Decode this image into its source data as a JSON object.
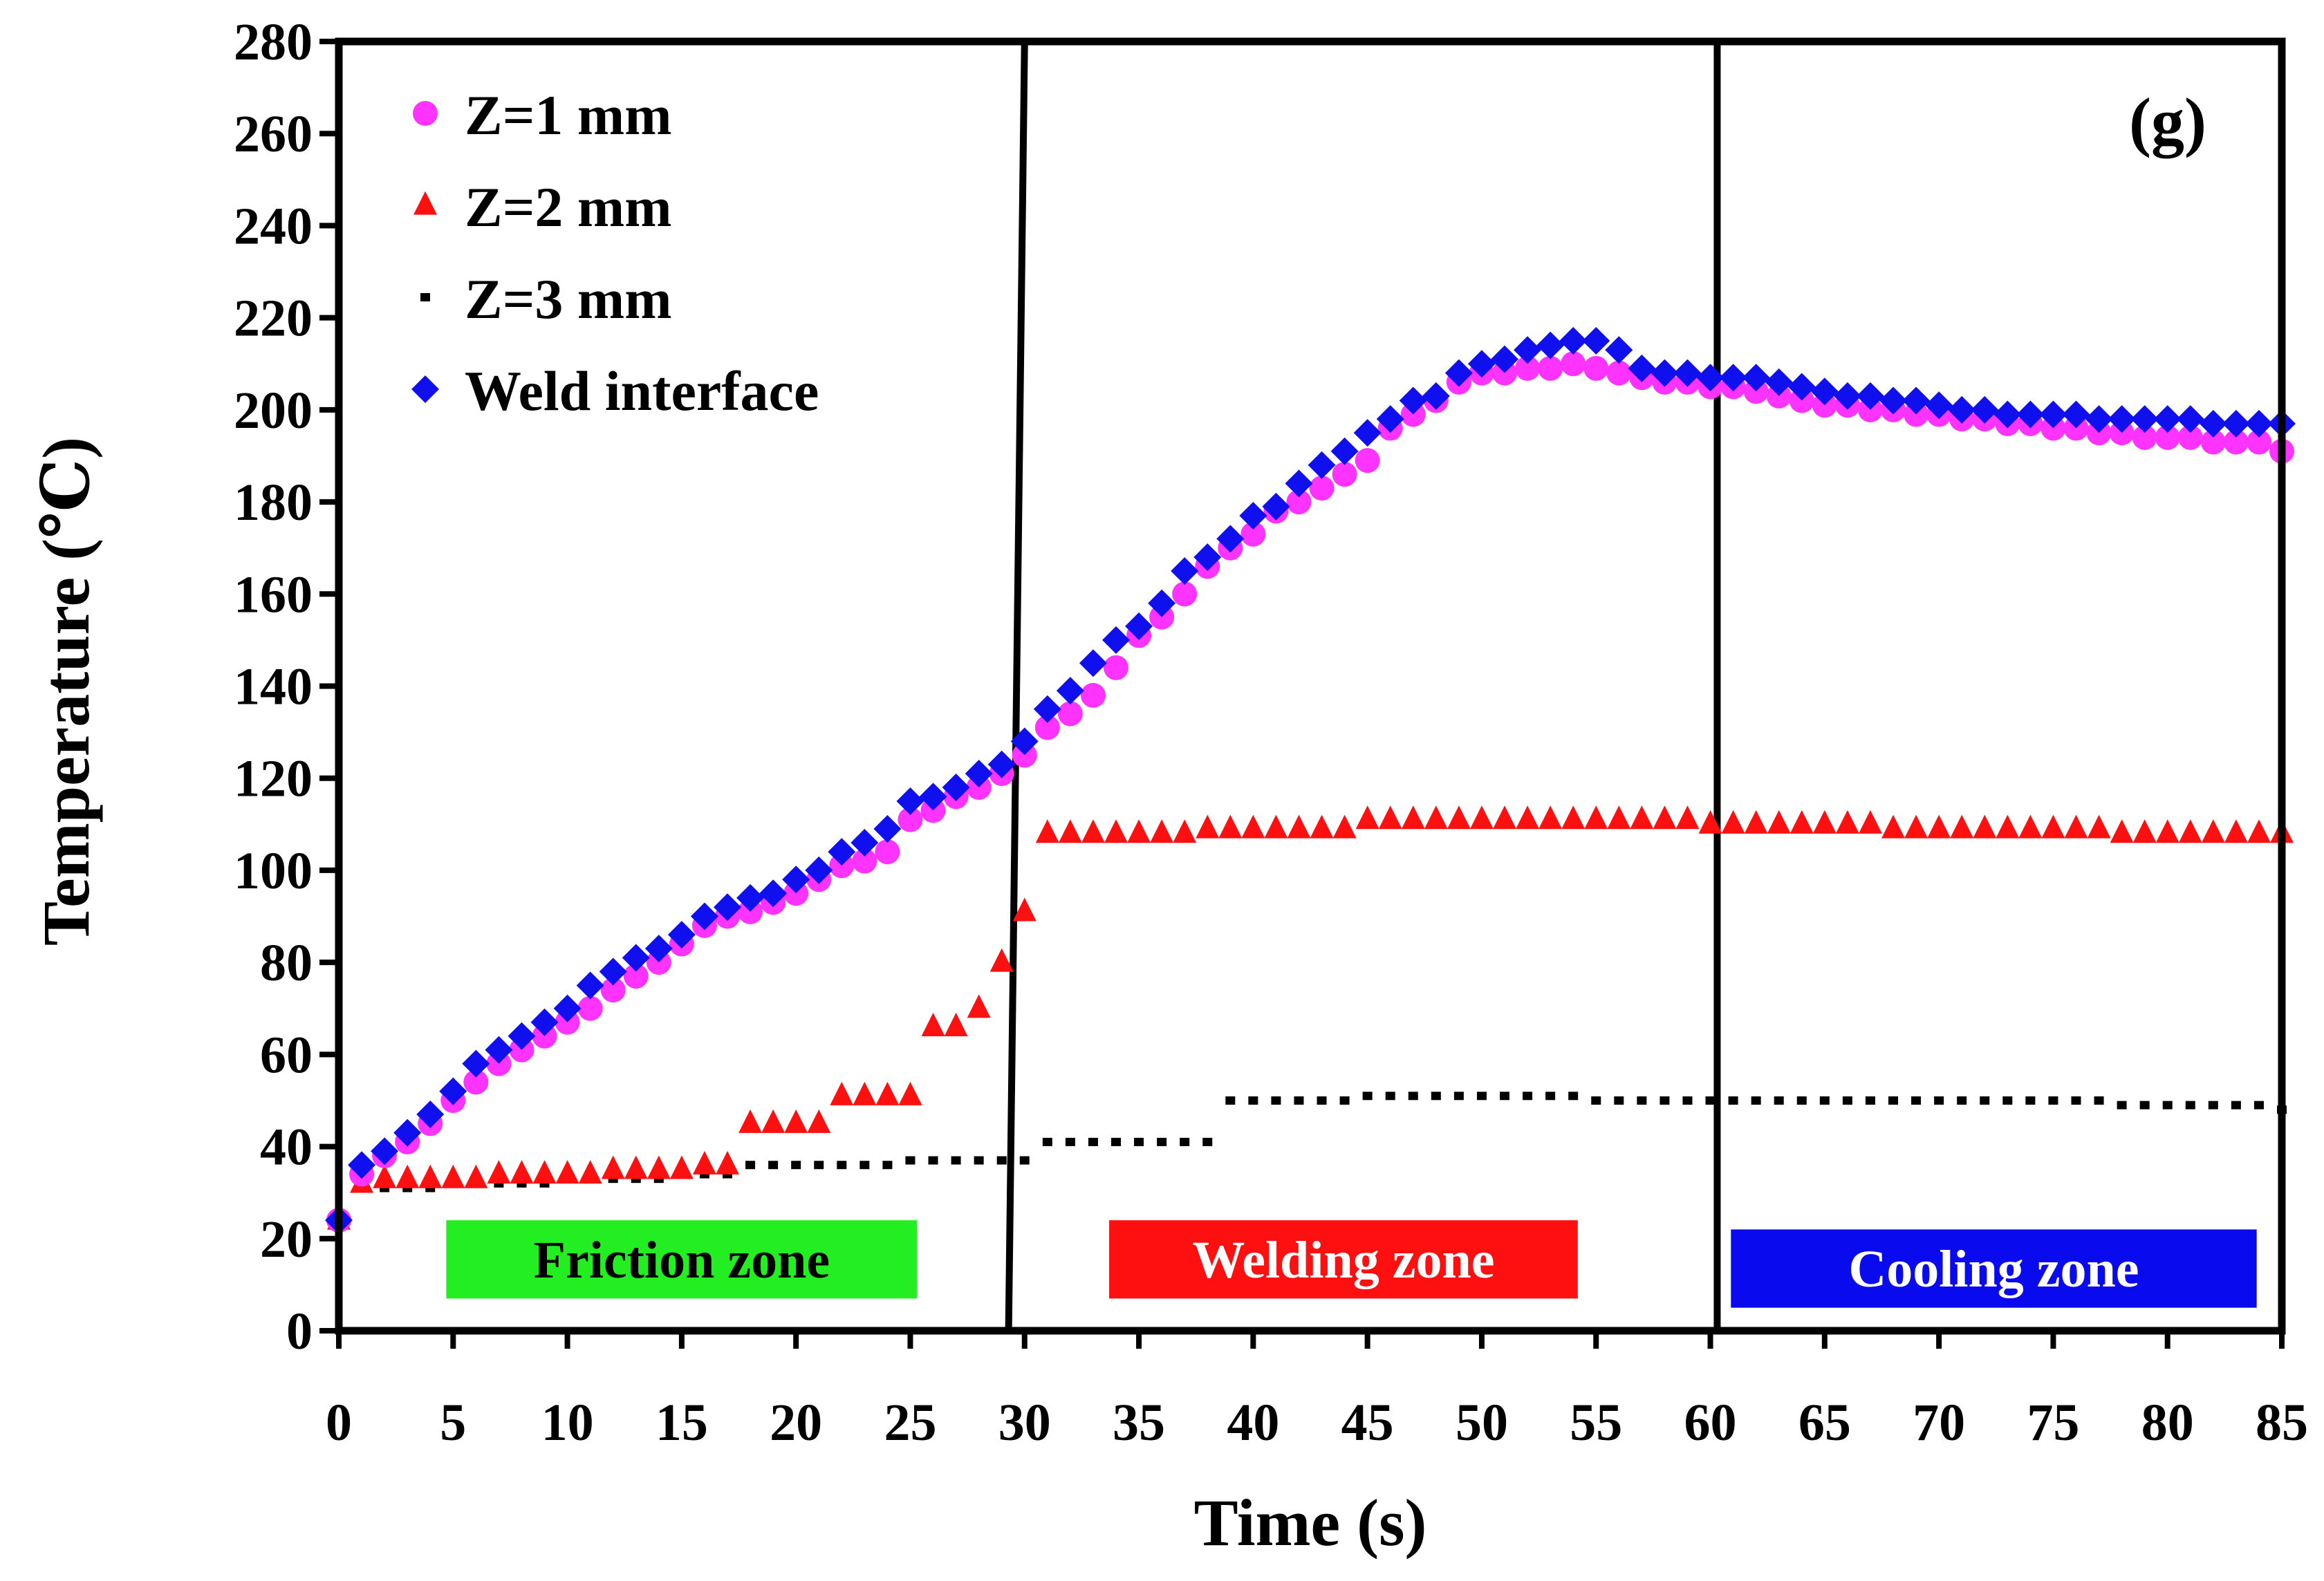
{
  "chart_data": {
    "type": "scatter",
    "title": "",
    "panel_label": "(g)",
    "xlabel": "Time (s)",
    "ylabel": "Temperature (℃)",
    "xlim": [
      0,
      85
    ],
    "ylim": [
      0,
      280
    ],
    "xticks": [
      0,
      5,
      10,
      15,
      20,
      25,
      30,
      35,
      40,
      45,
      50,
      55,
      60,
      65,
      70,
      75,
      80,
      85
    ],
    "yticks": [
      0,
      20,
      40,
      60,
      80,
      100,
      120,
      140,
      160,
      180,
      200,
      220,
      240,
      260,
      280
    ],
    "legend_position": "top-left",
    "colors": {
      "z1": "#ff33ff",
      "z2": "#ff1010",
      "z3": "#000000",
      "weld": "#1010ee",
      "panel_label": "#1a1ae6",
      "friction_zone": "#22ee22",
      "welding_zone": "#ff1010",
      "cooling_zone": "#0a0aee"
    },
    "zone_boundaries": [
      {
        "x_top": 30,
        "x_bottom": 29.3
      },
      {
        "x_top": 60.3,
        "x_bottom": 60.3
      }
    ],
    "zones": [
      {
        "label": "Friction zone",
        "x_start": 4.7,
        "x_end": 25.3,
        "y_low": 7,
        "y_high": 24,
        "fill": "#22ee22",
        "text_color": "#000000"
      },
      {
        "label": "Welding zone",
        "x_start": 33.7,
        "x_end": 54.2,
        "y_low": 7,
        "y_high": 24,
        "fill": "#ff1010",
        "text_color": "#ffffff"
      },
      {
        "label": "Cooling zone",
        "x_start": 60.9,
        "x_end": 83.9,
        "y_low": 5,
        "y_high": 22,
        "fill": "#0a0aee",
        "text_color": "#ffffff"
      }
    ],
    "series": [
      {
        "name": "Z=1 mm",
        "marker": "circle",
        "color": "#ff33ff",
        "x": [
          0,
          1,
          2,
          3,
          4,
          5,
          6,
          7,
          8,
          9,
          10,
          11,
          12,
          13,
          14,
          15,
          16,
          17,
          18,
          19,
          20,
          21,
          22,
          23,
          24,
          25,
          26,
          27,
          28,
          29,
          30,
          31,
          32,
          33,
          34,
          35,
          36,
          37,
          38,
          39,
          40,
          41,
          42,
          43,
          44,
          45,
          46,
          47,
          48,
          49,
          50,
          51,
          52,
          53,
          54,
          55,
          56,
          57,
          58,
          59,
          60,
          61,
          62,
          63,
          64,
          65,
          66,
          67,
          68,
          69,
          70,
          71,
          72,
          73,
          74,
          75,
          76,
          77,
          78,
          79,
          80,
          81,
          82,
          83,
          84,
          85
        ],
        "values": [
          24,
          34,
          38,
          41,
          45,
          50,
          54,
          58,
          61,
          64,
          67,
          70,
          74,
          77,
          80,
          84,
          88,
          90,
          91,
          93,
          95,
          98,
          101,
          102,
          104,
          111,
          113,
          116,
          118,
          121,
          125,
          131,
          134,
          138,
          144,
          151,
          155,
          160,
          166,
          170,
          173,
          178,
          180,
          183,
          186,
          189,
          196,
          199,
          202,
          206,
          208,
          208,
          209,
          209,
          210,
          209,
          208,
          207,
          206,
          206,
          205,
          205,
          204,
          203,
          202,
          201,
          201,
          200,
          200,
          199,
          199,
          198,
          198,
          197,
          197,
          196,
          196,
          195,
          195,
          194,
          194,
          194,
          193,
          193,
          193,
          191
        ]
      },
      {
        "name": "Z=2 mm",
        "marker": "triangle",
        "color": "#ff1010",
        "x": [
          0,
          1,
          2,
          3,
          4,
          5,
          6,
          7,
          8,
          9,
          10,
          11,
          12,
          13,
          14,
          15,
          16,
          17,
          18,
          19,
          20,
          21,
          22,
          23,
          24,
          25,
          26,
          27,
          28,
          29,
          30,
          31,
          32,
          33,
          34,
          35,
          36,
          37,
          38,
          39,
          40,
          41,
          42,
          43,
          44,
          45,
          46,
          47,
          48,
          49,
          50,
          51,
          52,
          53,
          54,
          55,
          56,
          57,
          58,
          59,
          60,
          61,
          62,
          63,
          64,
          65,
          66,
          67,
          68,
          69,
          70,
          71,
          72,
          73,
          74,
          75,
          76,
          77,
          78,
          79,
          80,
          81,
          82,
          83,
          84,
          85
        ],
        "values": [
          24,
          32,
          33,
          33,
          33,
          33,
          33,
          34,
          34,
          34,
          34,
          34,
          35,
          35,
          35,
          35,
          36,
          36,
          45,
          45,
          45,
          45,
          51,
          51,
          51,
          51,
          66,
          66,
          70,
          80,
          91,
          108,
          108,
          108,
          108,
          108,
          108,
          108,
          109,
          109,
          109,
          109,
          109,
          109,
          109,
          111,
          111,
          111,
          111,
          111,
          111,
          111,
          111,
          111,
          111,
          111,
          111,
          111,
          111,
          111,
          110,
          110,
          110,
          110,
          110,
          110,
          110,
          110,
          109,
          109,
          109,
          109,
          109,
          109,
          109,
          109,
          109,
          109,
          108,
          108,
          108,
          108,
          108,
          108,
          108,
          108
        ]
      },
      {
        "name": "Z=3 mm",
        "marker": "square",
        "color": "#000000",
        "x": [
          0,
          1,
          2,
          3,
          4,
          5,
          6,
          7,
          8,
          9,
          10,
          11,
          12,
          13,
          14,
          15,
          16,
          17,
          18,
          19,
          20,
          21,
          22,
          23,
          24,
          25,
          26,
          27,
          28,
          29,
          30,
          31,
          32,
          33,
          34,
          35,
          36,
          37,
          38,
          39,
          40,
          41,
          42,
          43,
          44,
          45,
          46,
          47,
          48,
          49,
          50,
          51,
          52,
          53,
          54,
          55,
          56,
          57,
          58,
          59,
          60,
          61,
          62,
          63,
          64,
          65,
          66,
          67,
          68,
          69,
          70,
          71,
          72,
          73,
          74,
          75,
          76,
          77,
          78,
          79,
          80,
          81,
          82,
          83,
          84,
          85
        ],
        "values": [
          24,
          31,
          31,
          31,
          31,
          32,
          32,
          32,
          32,
          32,
          33,
          33,
          33,
          33,
          33,
          34,
          34,
          34,
          36,
          36,
          36,
          36,
          36,
          36,
          36,
          37,
          37,
          37,
          37,
          37,
          37,
          41,
          41,
          41,
          41,
          41,
          41,
          41,
          41,
          50,
          50,
          50,
          50,
          50,
          50,
          51,
          51,
          51,
          51,
          51,
          51,
          51,
          51,
          51,
          51,
          50,
          50,
          50,
          50,
          50,
          50,
          50,
          50,
          50,
          50,
          50,
          50,
          50,
          50,
          50,
          50,
          50,
          50,
          50,
          50,
          50,
          50,
          50,
          49,
          49,
          49,
          49,
          49,
          49,
          49,
          48
        ]
      },
      {
        "name": "Weld interface",
        "marker": "diamond",
        "color": "#1010ee",
        "x": [
          0,
          1,
          2,
          3,
          4,
          5,
          6,
          7,
          8,
          9,
          10,
          11,
          12,
          13,
          14,
          15,
          16,
          17,
          18,
          19,
          20,
          21,
          22,
          23,
          24,
          25,
          26,
          27,
          28,
          29,
          30,
          31,
          32,
          33,
          34,
          35,
          36,
          37,
          38,
          39,
          40,
          41,
          42,
          43,
          44,
          45,
          46,
          47,
          48,
          49,
          50,
          51,
          52,
          53,
          54,
          55,
          56,
          57,
          58,
          59,
          60,
          61,
          62,
          63,
          64,
          65,
          66,
          67,
          68,
          69,
          70,
          71,
          72,
          73,
          74,
          75,
          76,
          77,
          78,
          79,
          80,
          81,
          82,
          83,
          84,
          85
        ],
        "values": [
          24,
          36,
          39,
          43,
          47,
          52,
          58,
          61,
          64,
          67,
          70,
          75,
          78,
          81,
          83,
          86,
          90,
          92,
          94,
          95,
          98,
          100,
          104,
          106,
          109,
          115,
          116,
          118,
          121,
          123,
          128,
          135,
          139,
          145,
          150,
          153,
          158,
          165,
          168,
          172,
          177,
          179,
          184,
          188,
          191,
          195,
          198,
          202,
          203,
          208,
          210,
          211,
          213,
          214,
          215,
          215,
          213,
          209,
          208,
          208,
          207,
          207,
          207,
          206,
          205,
          204,
          203,
          203,
          202,
          202,
          201,
          200,
          200,
          199,
          199,
          199,
          199,
          198,
          198,
          198,
          198,
          198,
          197,
          197,
          197,
          197
        ]
      }
    ]
  }
}
